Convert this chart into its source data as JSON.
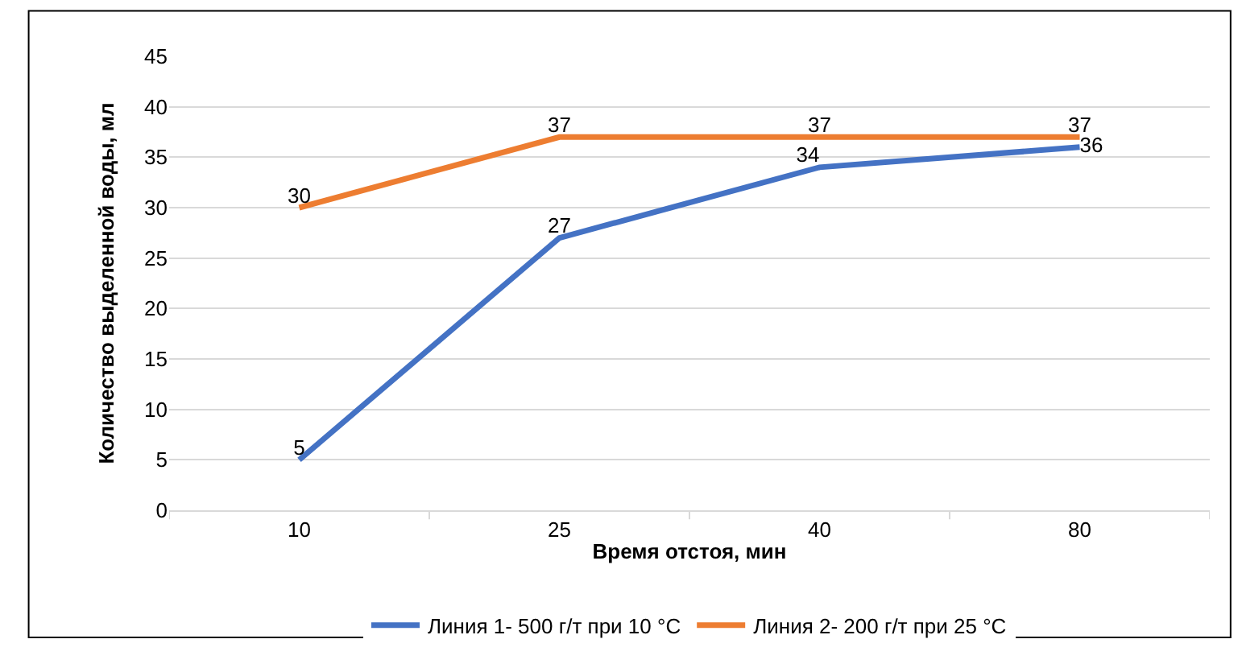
{
  "chart_data": {
    "type": "line",
    "xlabel": "Время отстоя, мин",
    "ylabel": "Количество выделенной воды, мл",
    "categories": [
      "10",
      "25",
      "40",
      "80"
    ],
    "series": [
      {
        "name": "Линия 1- 500 г/т при 10 °C",
        "color": "#4472c4",
        "values": [
          5,
          27,
          34,
          36
        ]
      },
      {
        "name": "Линия 2- 200 г/т при 25 °C",
        "color": "#ed7d31",
        "values": [
          30,
          37,
          37,
          37
        ]
      }
    ],
    "ylim": [
      0,
      45
    ],
    "yticks": [
      0,
      5,
      10,
      15,
      20,
      25,
      30,
      35,
      40,
      45
    ],
    "grid": "y",
    "legend": "bottom",
    "marker": "none",
    "line_style": "solid",
    "data_labels": true
  }
}
